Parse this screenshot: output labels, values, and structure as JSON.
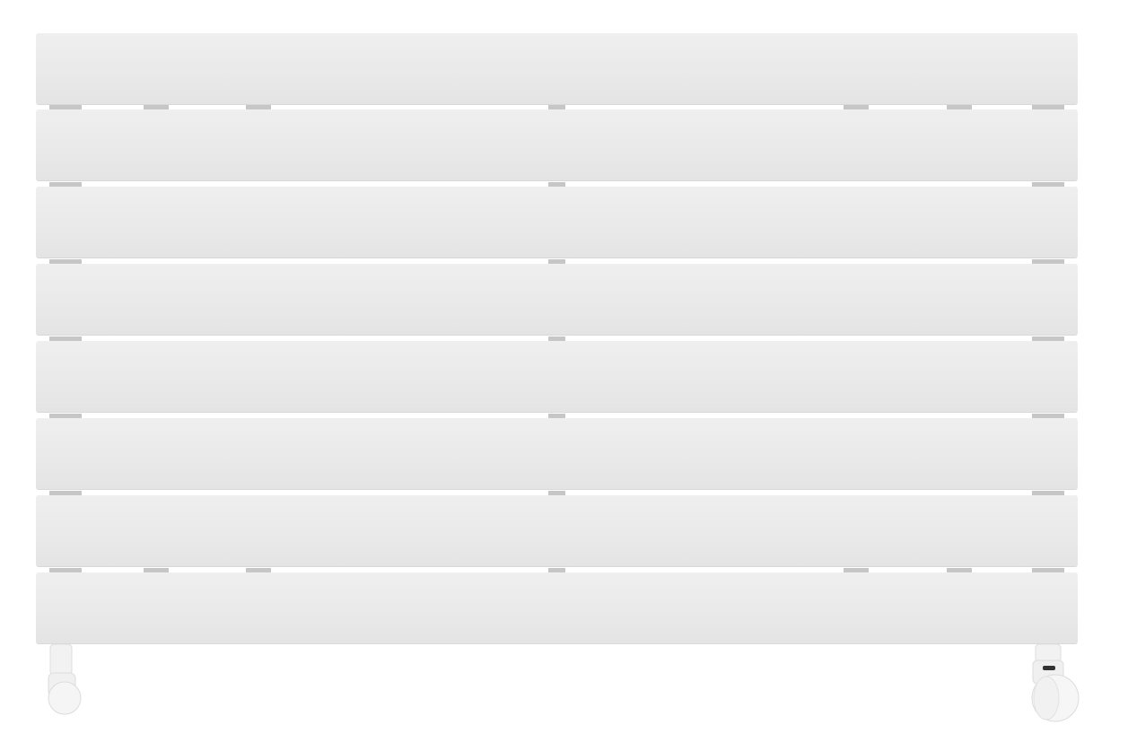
{
  "colors": {
    "background": "#ffffff",
    "panel": "#ebebeb",
    "bracket": "#c6c6c6",
    "valve": "#f4f4f4"
  }
}
